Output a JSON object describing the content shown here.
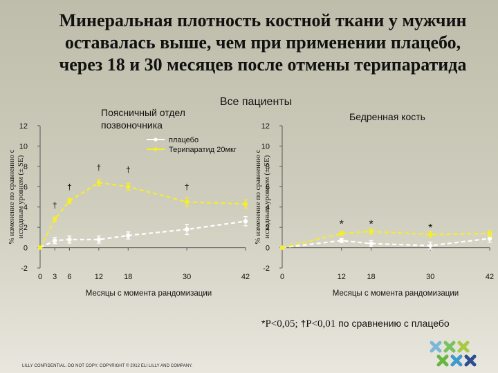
{
  "title_lines": [
    "Минеральная плотность костной ткани у мужчин",
    "оставалась выше, чем при применении плацебо,",
    "через 18 и 30 месяцев после отмены терипаратида"
  ],
  "subtitle": "Все пациенты",
  "footnote": {
    "star": "*",
    "p1": "P<0,05; ",
    "dagger": "†",
    "p2": "P<0,01",
    "rest": " по сравнению с плацебо"
  },
  "footer": "LILLY CONFIDENTIAL. DO NOT COPY. COPYRIGHT © 2012 ELI LILLY AND COMPANY.",
  "colors": {
    "placebo": "#ffffff",
    "teriparatide": "#f5ee2a",
    "axis": "#555555"
  },
  "chart_data": [
    {
      "type": "line",
      "title": "Поясничный отдел позвоночника",
      "xlabel": "Месяцы с момента рандомизации",
      "ylabel": "% изменение по сравнению с исходным уровнем (± SE)",
      "xlim": [
        0,
        42
      ],
      "ylim": [
        -2,
        12
      ],
      "xticks": [
        0,
        3,
        6,
        12,
        18,
        30,
        42
      ],
      "yticks": [
        -2,
        0,
        2,
        4,
        6,
        8,
        10,
        12
      ],
      "legend_position": "top-right",
      "series": [
        {
          "name": "плацебо",
          "x": [
            0,
            3,
            6,
            12,
            18,
            30,
            42
          ],
          "y": [
            0,
            0.7,
            0.8,
            0.8,
            1.2,
            1.8,
            2.6
          ],
          "err": [
            0,
            0.3,
            0.35,
            0.35,
            0.35,
            0.5,
            0.45
          ]
        },
        {
          "name": "Терипаратид 20мкг",
          "x": [
            0,
            3,
            6,
            12,
            18,
            30,
            42
          ],
          "y": [
            0,
            2.8,
            4.6,
            6.4,
            6.0,
            4.5,
            4.3
          ],
          "err": [
            0,
            0.2,
            0.25,
            0.3,
            0.35,
            0.4,
            0.4
          ]
        }
      ],
      "annotations": [
        {
          "x": 3,
          "y": 3.9,
          "text": "†"
        },
        {
          "x": 6,
          "y": 5.7,
          "text": "†"
        },
        {
          "x": 12,
          "y": 7.6,
          "text": "†"
        },
        {
          "x": 18,
          "y": 7.4,
          "text": "†"
        },
        {
          "x": 30,
          "y": 5.7,
          "text": "†"
        }
      ]
    },
    {
      "type": "line",
      "title": "Бедренная кость",
      "xlabel": "Месяцы с момента рандомизации",
      "ylabel": "% изменение по сравнению с исходным уровнем (± SE)",
      "xlim": [
        0,
        42
      ],
      "ylim": [
        -2,
        12
      ],
      "xticks": [
        0,
        12,
        18,
        30,
        42
      ],
      "yticks": [
        -2,
        0,
        2,
        4,
        6,
        8,
        10,
        12
      ],
      "series": [
        {
          "name": "плацебо",
          "x": [
            0,
            12,
            18,
            30,
            42
          ],
          "y": [
            0,
            0.7,
            0.4,
            0.2,
            0.9
          ],
          "err": [
            0,
            0.2,
            0.3,
            0.35,
            0.35
          ]
        },
        {
          "name": "Терипаратид 20мкг",
          "x": [
            0,
            12,
            18,
            30,
            42
          ],
          "y": [
            0,
            1.4,
            1.6,
            1.3,
            1.4
          ],
          "err": [
            0,
            0.2,
            0.25,
            0.3,
            0.3
          ]
        }
      ],
      "annotations": [
        {
          "x": 12,
          "y": 2.4,
          "text": "*"
        },
        {
          "x": 18,
          "y": 2.4,
          "text": "*"
        },
        {
          "x": 30,
          "y": 2.0,
          "text": "*"
        }
      ]
    }
  ]
}
